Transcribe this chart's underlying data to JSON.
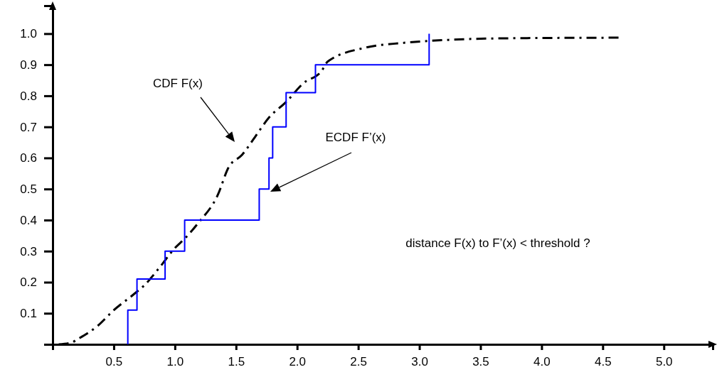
{
  "chart_data": {
    "type": "line",
    "xlim": [
      0,
      5.4
    ],
    "ylim": [
      0,
      1.09
    ],
    "xticks": [
      {
        "value": 0.5,
        "label": "0.5"
      },
      {
        "value": 1,
        "label": "1.0"
      },
      {
        "value": 1.5,
        "label": "1.5"
      },
      {
        "value": 2,
        "label": "2.0"
      },
      {
        "value": 2.5,
        "label": "2.5"
      },
      {
        "value": 3,
        "label": "3.0"
      },
      {
        "value": 3.5,
        "label": "3.5"
      },
      {
        "value": 4,
        "label": "4.0"
      },
      {
        "value": 4.5,
        "label": "4.5"
      },
      {
        "value": 5,
        "label": "5.0"
      }
    ],
    "yticks": [
      {
        "value": 0.1,
        "label": "0.1"
      },
      {
        "value": 0.2,
        "label": "0.2"
      },
      {
        "value": 0.3,
        "label": "0.3"
      },
      {
        "value": 0.4,
        "label": "0.4"
      },
      {
        "value": 0.5,
        "label": "0.5"
      },
      {
        "value": 0.6,
        "label": "0.6"
      },
      {
        "value": 0.7,
        "label": "0.7"
      },
      {
        "value": 0.8,
        "label": "0.8"
      },
      {
        "value": 0.9,
        "label": "0.9"
      },
      {
        "value": 1,
        "label": "1.0"
      }
    ],
    "grid": false,
    "series": [
      {
        "color": "#000000",
        "line_style": "dashed",
        "x": [
          0.05,
          0.15,
          0.21,
          0.37,
          0.5,
          0.66,
          0.75,
          0.88,
          1.0,
          1.08,
          1.19,
          1.35,
          1.44,
          1.55,
          1.66,
          1.77,
          1.91,
          2.05,
          2.2,
          2.25,
          2.56,
          2.86,
          3.24,
          3.69,
          4.65
        ],
        "values": [
          0,
          0.005,
          0.018,
          0.06,
          0.11,
          0.16,
          0.19,
          0.25,
          0.31,
          0.34,
          0.39,
          0.48,
          0.57,
          0.61,
          0.67,
          0.73,
          0.78,
          0.84,
          0.88,
          0.91,
          0.955,
          0.97,
          0.98,
          0.985,
          0.987
        ]
      },
      {
        "type": "step",
        "color": "#0000ff",
        "line_style": "solid",
        "x": [
          0.615,
          0.615,
          0.69,
          0.92,
          1.08,
          1.69,
          1.77,
          1.8,
          1.91,
          2.15,
          3.08
        ],
        "values": [
          0,
          0.11,
          0.21,
          0.3,
          0.4,
          0.5,
          0.6,
          0.7,
          0.81,
          0.9,
          1.0
        ]
      }
    ],
    "annotations": [
      "CDF F(x)",
      "ECDF F’(x)",
      "distance F(x) to F’(x) < threshold ?"
    ]
  }
}
